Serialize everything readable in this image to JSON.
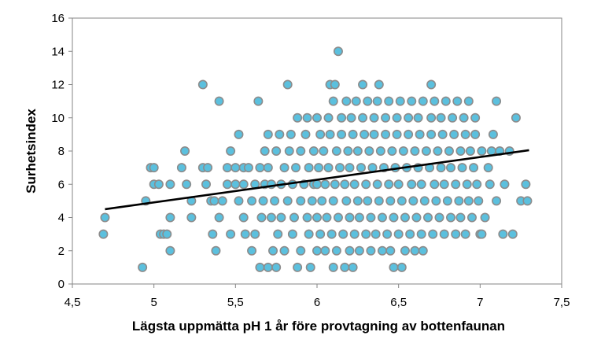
{
  "chart_data": {
    "type": "scatter",
    "title": "",
    "xlabel": "Lägsta uppmätta pH 1 år före provtagning av bottenfaunan",
    "ylabel": "Surhetsindex",
    "xlim": [
      4.5,
      7.5
    ],
    "ylim": [
      0,
      16
    ],
    "xticks": [
      4.5,
      5,
      5.5,
      6,
      6.5,
      7,
      7.5
    ],
    "xtick_labels": [
      "4,5",
      "5",
      "5,5",
      "6",
      "6,5",
      "7",
      "7,5"
    ],
    "yticks": [
      0,
      2,
      4,
      6,
      8,
      10,
      12,
      14,
      16
    ],
    "ytick_labels": [
      "0",
      "2",
      "4",
      "6",
      "8",
      "10",
      "12",
      "14",
      "16"
    ],
    "grid": false,
    "legend": "none",
    "marker_fill": "#5bc0de",
    "marker_edge": "#8c8c8c",
    "trendline": {
      "x": [
        4.7,
        7.3
      ],
      "y": [
        4.5,
        8.05
      ],
      "color": "#000000"
    },
    "points": [
      [
        4.69,
        3
      ],
      [
        4.7,
        4
      ],
      [
        4.93,
        1
      ],
      [
        4.95,
        5
      ],
      [
        4.98,
        7
      ],
      [
        5.0,
        7
      ],
      [
        5.0,
        6
      ],
      [
        5.03,
        6
      ],
      [
        5.04,
        3
      ],
      [
        5.06,
        3
      ],
      [
        5.08,
        3
      ],
      [
        5.1,
        2
      ],
      [
        5.1,
        4
      ],
      [
        5.1,
        6
      ],
      [
        5.17,
        7
      ],
      [
        5.19,
        8
      ],
      [
        5.2,
        6
      ],
      [
        5.23,
        4
      ],
      [
        5.23,
        5
      ],
      [
        5.3,
        12
      ],
      [
        5.3,
        7
      ],
      [
        5.33,
        7
      ],
      [
        5.32,
        6
      ],
      [
        5.35,
        5
      ],
      [
        5.36,
        3
      ],
      [
        5.37,
        5
      ],
      [
        5.38,
        2
      ],
      [
        5.4,
        4
      ],
      [
        5.4,
        11
      ],
      [
        5.42,
        5
      ],
      [
        5.45,
        7
      ],
      [
        5.45,
        6
      ],
      [
        5.47,
        3
      ],
      [
        5.47,
        8
      ],
      [
        5.5,
        7
      ],
      [
        5.5,
        6
      ],
      [
        5.52,
        5
      ],
      [
        5.52,
        9
      ],
      [
        5.55,
        4
      ],
      [
        5.55,
        6
      ],
      [
        5.55,
        7
      ],
      [
        5.56,
        3
      ],
      [
        5.58,
        7
      ],
      [
        5.6,
        5
      ],
      [
        5.6,
        2
      ],
      [
        5.62,
        3
      ],
      [
        5.62,
        6
      ],
      [
        5.64,
        11
      ],
      [
        5.65,
        7
      ],
      [
        5.65,
        1
      ],
      [
        5.66,
        4
      ],
      [
        5.67,
        5
      ],
      [
        5.68,
        6
      ],
      [
        5.68,
        8
      ],
      [
        5.7,
        1
      ],
      [
        5.7,
        7
      ],
      [
        5.7,
        9
      ],
      [
        5.72,
        4
      ],
      [
        5.72,
        6
      ],
      [
        5.73,
        2
      ],
      [
        5.74,
        5
      ],
      [
        5.75,
        8
      ],
      [
        5.75,
        1
      ],
      [
        5.76,
        3
      ],
      [
        5.77,
        9
      ],
      [
        5.78,
        6
      ],
      [
        5.78,
        4
      ],
      [
        5.8,
        7
      ],
      [
        5.8,
        2
      ],
      [
        5.82,
        12
      ],
      [
        5.82,
        5
      ],
      [
        5.83,
        8
      ],
      [
        5.84,
        9
      ],
      [
        5.85,
        3
      ],
      [
        5.85,
        6
      ],
      [
        5.86,
        4
      ],
      [
        5.87,
        7
      ],
      [
        5.88,
        1
      ],
      [
        5.88,
        10
      ],
      [
        5.9,
        5
      ],
      [
        5.9,
        2
      ],
      [
        5.9,
        8
      ],
      [
        5.92,
        6
      ],
      [
        5.93,
        9
      ],
      [
        5.94,
        4
      ],
      [
        5.94,
        10
      ],
      [
        5.95,
        3
      ],
      [
        5.95,
        7
      ],
      [
        5.96,
        1
      ],
      [
        5.97,
        5
      ],
      [
        5.98,
        6
      ],
      [
        5.98,
        8
      ],
      [
        6.0,
        10
      ],
      [
        6.0,
        2
      ],
      [
        6.0,
        4
      ],
      [
        6.0,
        6
      ],
      [
        6.01,
        7
      ],
      [
        6.02,
        9
      ],
      [
        6.02,
        3
      ],
      [
        6.03,
        5
      ],
      [
        6.04,
        8
      ],
      [
        6.05,
        2
      ],
      [
        6.05,
        6
      ],
      [
        6.06,
        4
      ],
      [
        6.07,
        7
      ],
      [
        6.07,
        10
      ],
      [
        6.08,
        12
      ],
      [
        6.08,
        9
      ],
      [
        6.09,
        3
      ],
      [
        6.1,
        1
      ],
      [
        6.1,
        11
      ],
      [
        6.1,
        5
      ],
      [
        6.11,
        12
      ],
      [
        6.11,
        6
      ],
      [
        6.12,
        8
      ],
      [
        6.12,
        2
      ],
      [
        6.13,
        14
      ],
      [
        6.13,
        4
      ],
      [
        6.14,
        7
      ],
      [
        6.15,
        10
      ],
      [
        6.15,
        9
      ],
      [
        6.16,
        3
      ],
      [
        6.17,
        1
      ],
      [
        6.17,
        6
      ],
      [
        6.18,
        11
      ],
      [
        6.18,
        5
      ],
      [
        6.19,
        8
      ],
      [
        6.2,
        2
      ],
      [
        6.2,
        4
      ],
      [
        6.2,
        7
      ],
      [
        6.21,
        10
      ],
      [
        6.22,
        1
      ],
      [
        6.22,
        9
      ],
      [
        6.23,
        3
      ],
      [
        6.23,
        6
      ],
      [
        6.24,
        11
      ],
      [
        6.25,
        5
      ],
      [
        6.25,
        8
      ],
      [
        6.26,
        2
      ],
      [
        6.26,
        4
      ],
      [
        6.27,
        7
      ],
      [
        6.28,
        12
      ],
      [
        6.28,
        10
      ],
      [
        6.29,
        9
      ],
      [
        6.3,
        3
      ],
      [
        6.3,
        6
      ],
      [
        6.31,
        11
      ],
      [
        6.31,
        5
      ],
      [
        6.32,
        8
      ],
      [
        6.33,
        2
      ],
      [
        6.33,
        4
      ],
      [
        6.34,
        7
      ],
      [
        6.35,
        10
      ],
      [
        6.35,
        9
      ],
      [
        6.36,
        3
      ],
      [
        6.37,
        6
      ],
      [
        6.37,
        11
      ],
      [
        6.38,
        5
      ],
      [
        6.38,
        12
      ],
      [
        6.39,
        8
      ],
      [
        6.4,
        2
      ],
      [
        6.4,
        4
      ],
      [
        6.41,
        7
      ],
      [
        6.42,
        10
      ],
      [
        6.42,
        9
      ],
      [
        6.43,
        3
      ],
      [
        6.44,
        6
      ],
      [
        6.44,
        11
      ],
      [
        6.45,
        5
      ],
      [
        6.45,
        2
      ],
      [
        6.46,
        8
      ],
      [
        6.47,
        1
      ],
      [
        6.47,
        4
      ],
      [
        6.48,
        7
      ],
      [
        6.49,
        10
      ],
      [
        6.49,
        9
      ],
      [
        6.5,
        3
      ],
      [
        6.5,
        6
      ],
      [
        6.51,
        11
      ],
      [
        6.52,
        5
      ],
      [
        6.52,
        1
      ],
      [
        6.53,
        8
      ],
      [
        6.54,
        2
      ],
      [
        6.54,
        4
      ],
      [
        6.55,
        7
      ],
      [
        6.56,
        10
      ],
      [
        6.56,
        9
      ],
      [
        6.57,
        3
      ],
      [
        6.58,
        6
      ],
      [
        6.58,
        11
      ],
      [
        6.59,
        5
      ],
      [
        6.6,
        8
      ],
      [
        6.6,
        2
      ],
      [
        6.61,
        4
      ],
      [
        6.62,
        7
      ],
      [
        6.62,
        10
      ],
      [
        6.63,
        9
      ],
      [
        6.64,
        3
      ],
      [
        6.64,
        6
      ],
      [
        6.65,
        11
      ],
      [
        6.65,
        2
      ],
      [
        6.66,
        5
      ],
      [
        6.67,
        8
      ],
      [
        6.68,
        4
      ],
      [
        6.69,
        7
      ],
      [
        6.7,
        12
      ],
      [
        6.7,
        10
      ],
      [
        6.7,
        9
      ],
      [
        6.71,
        3
      ],
      [
        6.72,
        6
      ],
      [
        6.72,
        11
      ],
      [
        6.73,
        5
      ],
      [
        6.74,
        8
      ],
      [
        6.75,
        4
      ],
      [
        6.76,
        7
      ],
      [
        6.76,
        10
      ],
      [
        6.77,
        9
      ],
      [
        6.78,
        3
      ],
      [
        6.78,
        6
      ],
      [
        6.79,
        11
      ],
      [
        6.8,
        5
      ],
      [
        6.81,
        8
      ],
      [
        6.82,
        4
      ],
      [
        6.82,
        7
      ],
      [
        6.83,
        10
      ],
      [
        6.84,
        9
      ],
      [
        6.85,
        3
      ],
      [
        6.85,
        6
      ],
      [
        6.86,
        11
      ],
      [
        6.87,
        5
      ],
      [
        6.88,
        8
      ],
      [
        6.88,
        4
      ],
      [
        6.89,
        7
      ],
      [
        6.9,
        10
      ],
      [
        6.91,
        9
      ],
      [
        6.91,
        3
      ],
      [
        6.92,
        6
      ],
      [
        6.93,
        11
      ],
      [
        6.93,
        5
      ],
      [
        6.94,
        8
      ],
      [
        6.95,
        4
      ],
      [
        6.96,
        7
      ],
      [
        6.97,
        10
      ],
      [
        6.97,
        9
      ],
      [
        6.98,
        6
      ],
      [
        6.99,
        5
      ],
      [
        7.0,
        3
      ],
      [
        7.01,
        8
      ],
      [
        7.01,
        3
      ],
      [
        7.03,
        4
      ],
      [
        7.05,
        7
      ],
      [
        7.06,
        6
      ],
      [
        7.07,
        8
      ],
      [
        7.08,
        9
      ],
      [
        7.1,
        11
      ],
      [
        7.1,
        5
      ],
      [
        7.12,
        8
      ],
      [
        7.14,
        3
      ],
      [
        7.15,
        6
      ],
      [
        7.18,
        8
      ],
      [
        7.2,
        3
      ],
      [
        7.22,
        10
      ],
      [
        7.25,
        5
      ],
      [
        7.28,
        6
      ],
      [
        7.29,
        5
      ]
    ]
  }
}
